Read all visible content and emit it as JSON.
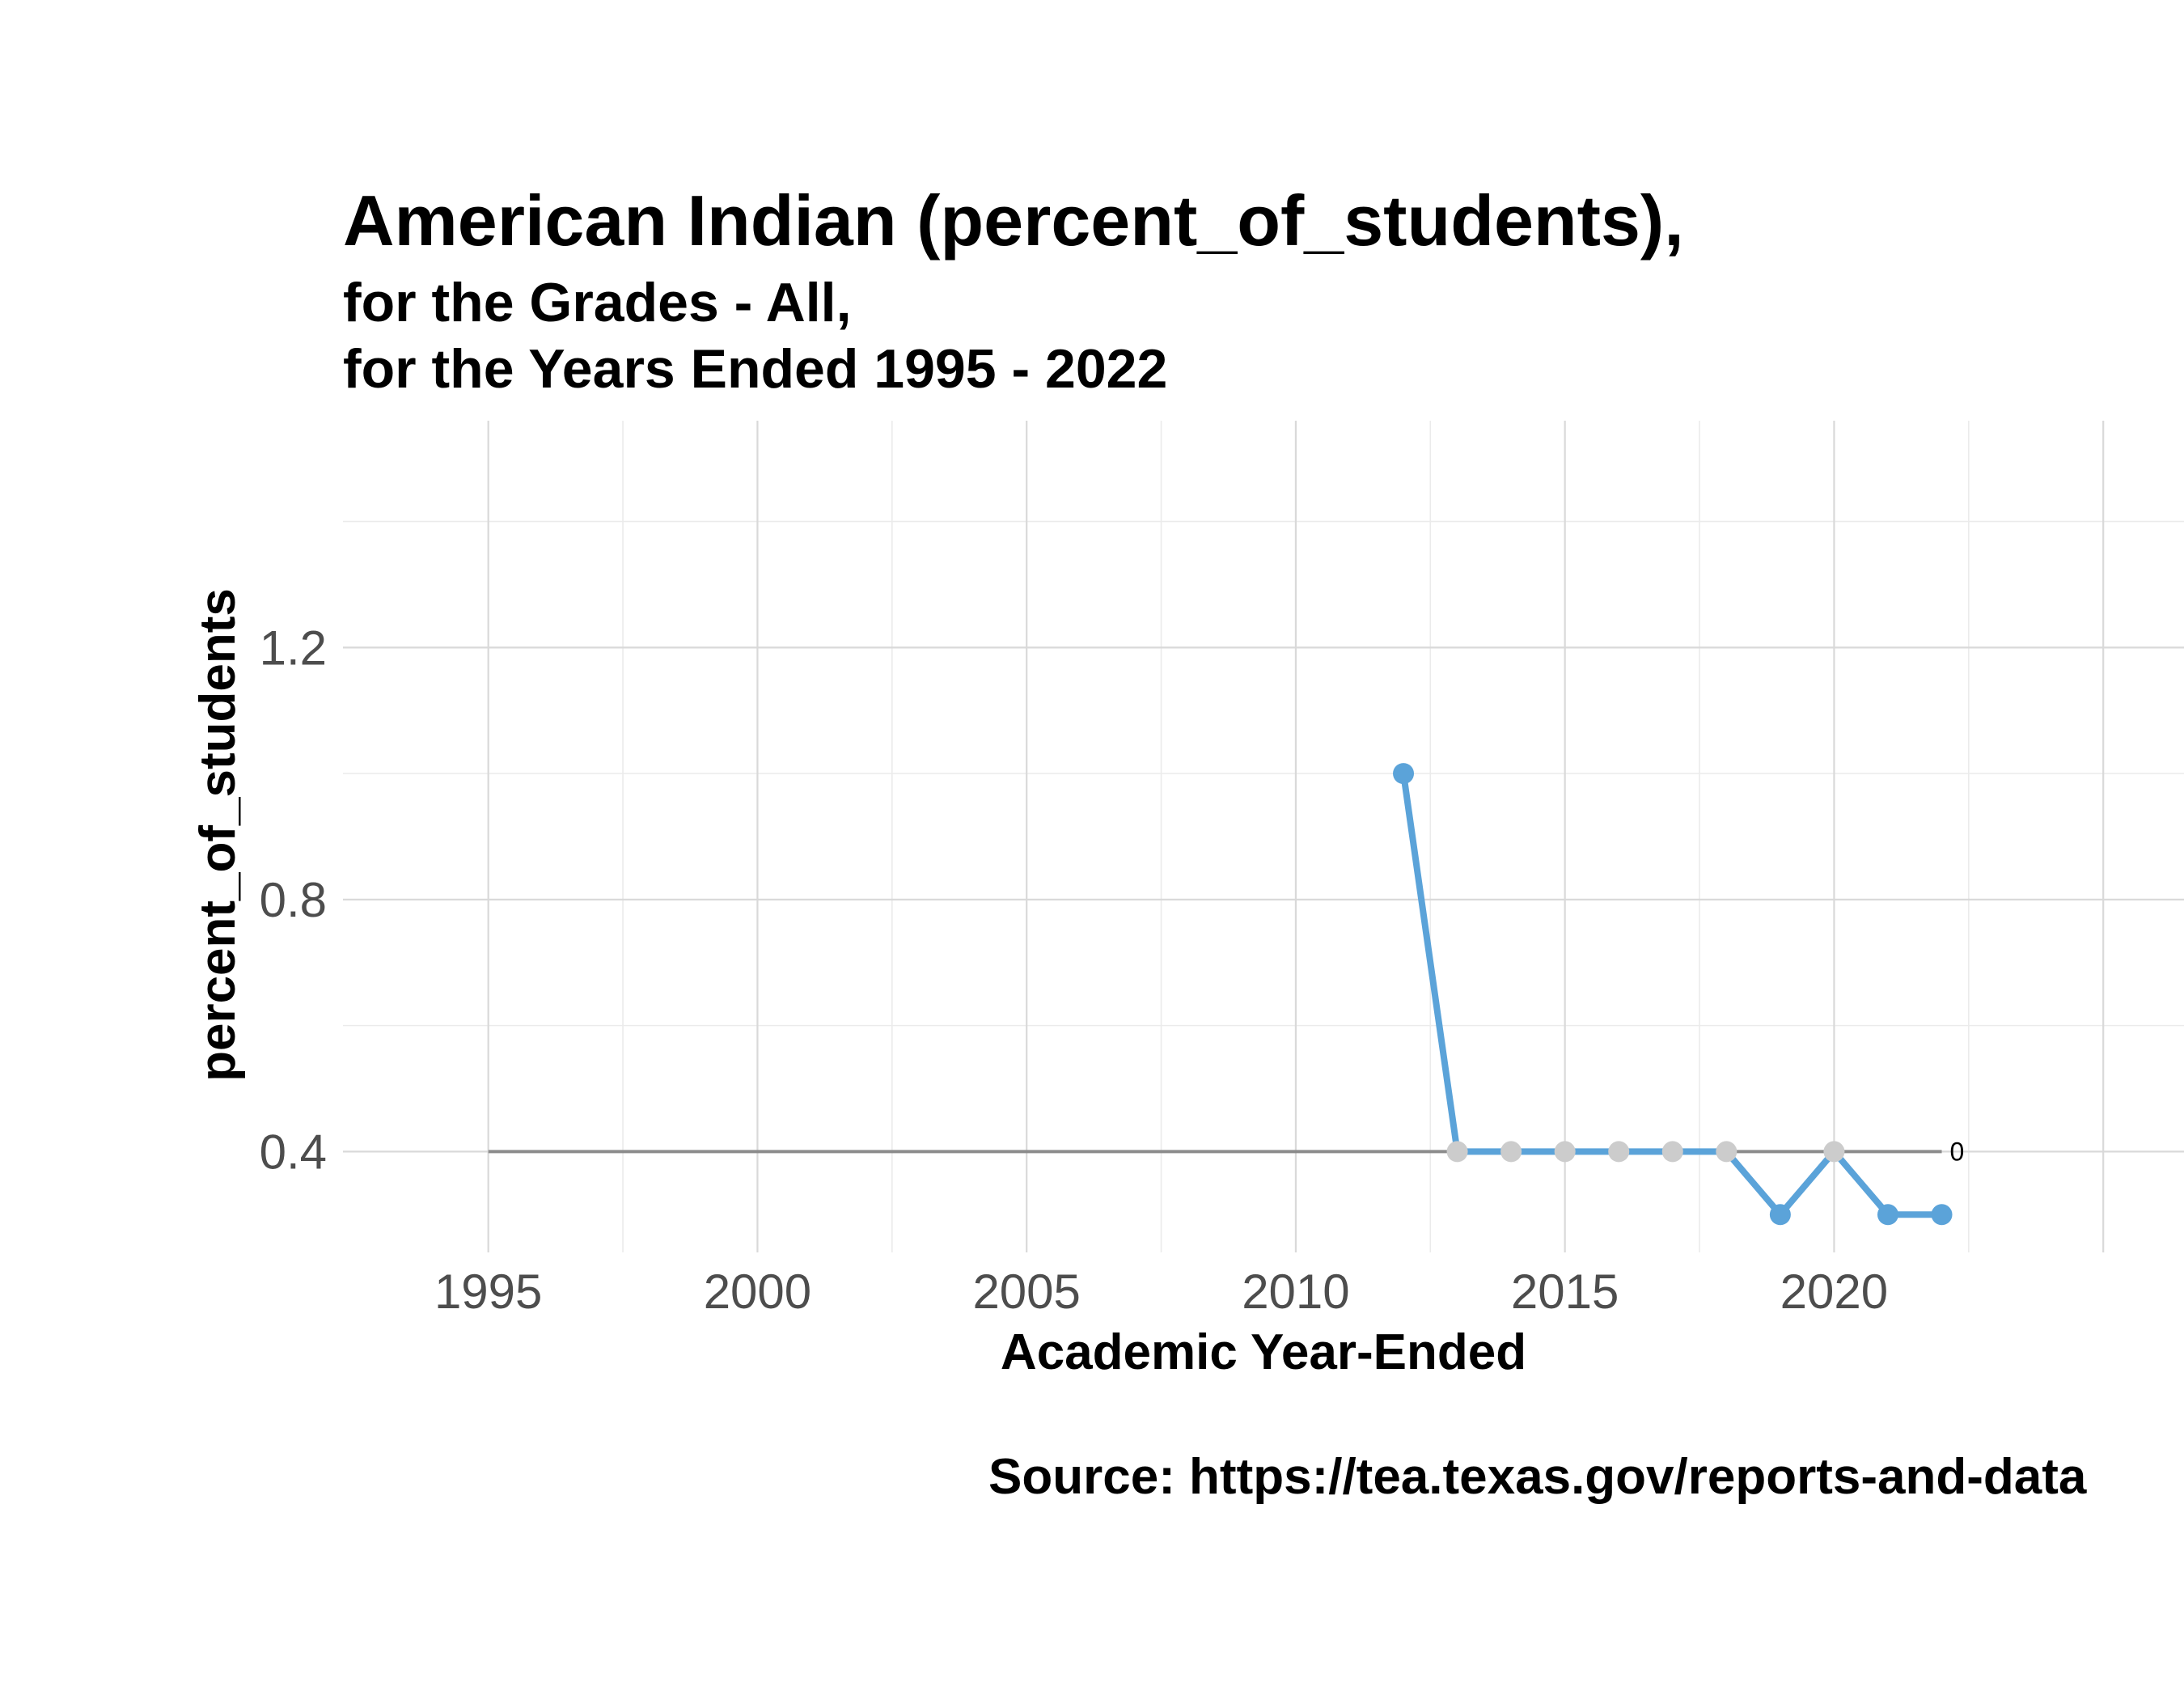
{
  "title": "American Indian (percent_of_students),",
  "subtitle_line1": "for the Grades - All,",
  "subtitle_line2": "for the Years Ended 1995  -  2022",
  "source": "Source:  https://tea.texas.gov/reports-and-data",
  "colors": {
    "line": "#5ba3d9",
    "gray_point": "#cccccc",
    "reference": "#8c8c8c",
    "grid_major": "#d9d9d9",
    "grid_minor": "#ebebeb"
  },
  "chart_data": {
    "type": "line",
    "xlabel": "Academic Year-Ended",
    "ylabel": "percent_of_students",
    "xlim": [
      1992.3,
      2026.5
    ],
    "ylim": [
      0.24,
      1.56
    ],
    "x_ticks": [
      1995,
      2000,
      2005,
      2010,
      2015,
      2020
    ],
    "x_tick_labels": [
      "1995",
      "2000",
      "2005",
      "2010",
      "2015",
      "2020"
    ],
    "y_ticks": [
      0.4,
      0.8,
      1.2
    ],
    "y_tick_labels": [
      "0.4",
      "0.8",
      "1.2"
    ],
    "grid": true,
    "series": [
      {
        "x": [
          2012,
          2013,
          2014,
          2015,
          2016,
          2017,
          2018,
          2019,
          2020,
          2021,
          2022
        ],
        "values": [
          1.0,
          0.4,
          0.4,
          0.4,
          0.4,
          0.4,
          0.4,
          0.3,
          0.4,
          0.3,
          0.3
        ],
        "point_colors": [
          "blue",
          "gray",
          "gray",
          "gray",
          "gray",
          "gray",
          "gray",
          "blue",
          "gray",
          "blue",
          "blue"
        ]
      }
    ],
    "reference_line": {
      "y": 0.4,
      "x_start": 1995,
      "x_end": 2022,
      "label": "0"
    }
  }
}
